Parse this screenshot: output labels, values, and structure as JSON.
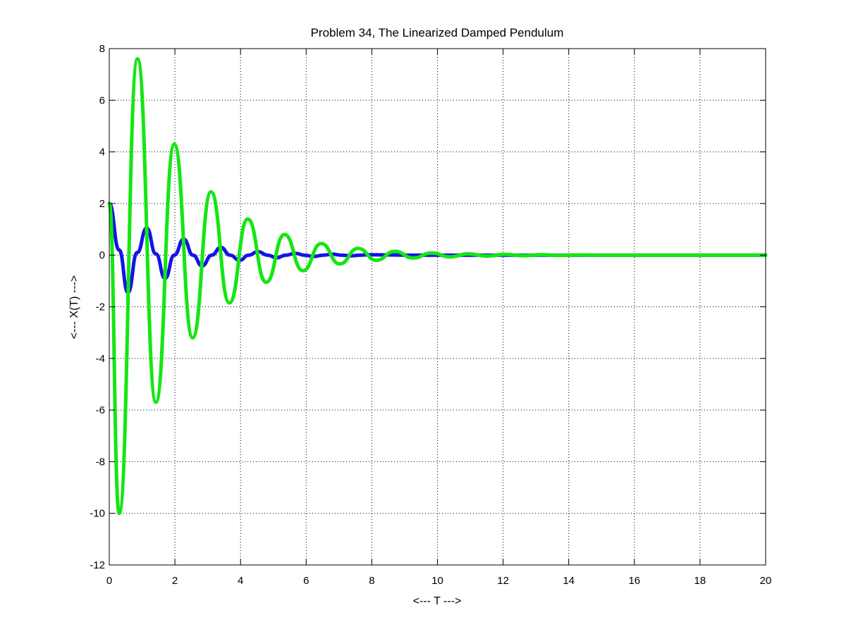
{
  "chart_data": {
    "type": "line",
    "title": "Problem 34, The Linearized Damped Pendulum",
    "xlabel": "<--- T --->",
    "ylabel": "<--- X(T) --->",
    "xlim": [
      0,
      20
    ],
    "ylim": [
      -12,
      8
    ],
    "xticks": [
      "0",
      "2",
      "4",
      "6",
      "8",
      "10",
      "12",
      "14",
      "16",
      "18",
      "20"
    ],
    "yticks": [
      "8",
      "6",
      "4",
      "2",
      "0",
      "-2",
      "-4",
      "-6",
      "-8",
      "-10",
      "-12"
    ],
    "grid": true,
    "series": [
      {
        "color": "#1414e6",
        "x": [
          0,
          0.3,
          0.57,
          0.85,
          1.14,
          1.42,
          1.7,
          1.98,
          2.27,
          2.55,
          2.83,
          3.12,
          3.4,
          3.68,
          3.97,
          4.25,
          4.53,
          4.82,
          5.1,
          5.38,
          5.67,
          5.95,
          6.23,
          6.52,
          6.8,
          7.08,
          7.37,
          7.65,
          7.93,
          8.5,
          9.0,
          10.0,
          11.0,
          12.0,
          14.0,
          16.0,
          18.0,
          20.0
        ],
        "y": [
          2.0,
          0.2,
          -1.45,
          0.1,
          1.05,
          0.05,
          -0.9,
          0.0,
          0.62,
          0.0,
          -0.42,
          0.0,
          0.3,
          0.0,
          -0.2,
          0.0,
          0.14,
          0.0,
          -0.1,
          0.0,
          0.07,
          0.0,
          -0.05,
          0.0,
          0.035,
          0.0,
          -0.025,
          0.0,
          0.015,
          0.01,
          0.0,
          0.0,
          0.0,
          0.0,
          0.0,
          0.0,
          0.0,
          0.0
        ]
      },
      {
        "color": "#14e614",
        "x": [
          0,
          0.3,
          0.86,
          1.42,
          1.98,
          2.54,
          3.1,
          3.66,
          4.22,
          4.78,
          5.34,
          5.9,
          6.46,
          7.02,
          7.58,
          8.14,
          8.7,
          9.26,
          9.82,
          10.38,
          10.94,
          11.5,
          12.06,
          12.62,
          13.18,
          13.74,
          14.3,
          15.0,
          16.0,
          18.0,
          20.0
        ],
        "y": [
          2.0,
          -10.0,
          7.6,
          -5.7,
          4.3,
          -3.2,
          2.45,
          -1.85,
          1.4,
          -1.05,
          0.8,
          -0.6,
          0.45,
          -0.34,
          0.26,
          -0.2,
          0.15,
          -0.11,
          0.085,
          -0.065,
          0.05,
          -0.037,
          0.028,
          -0.021,
          0.016,
          -0.012,
          0.009,
          0.0,
          0.0,
          0.0,
          0.0
        ]
      }
    ]
  }
}
